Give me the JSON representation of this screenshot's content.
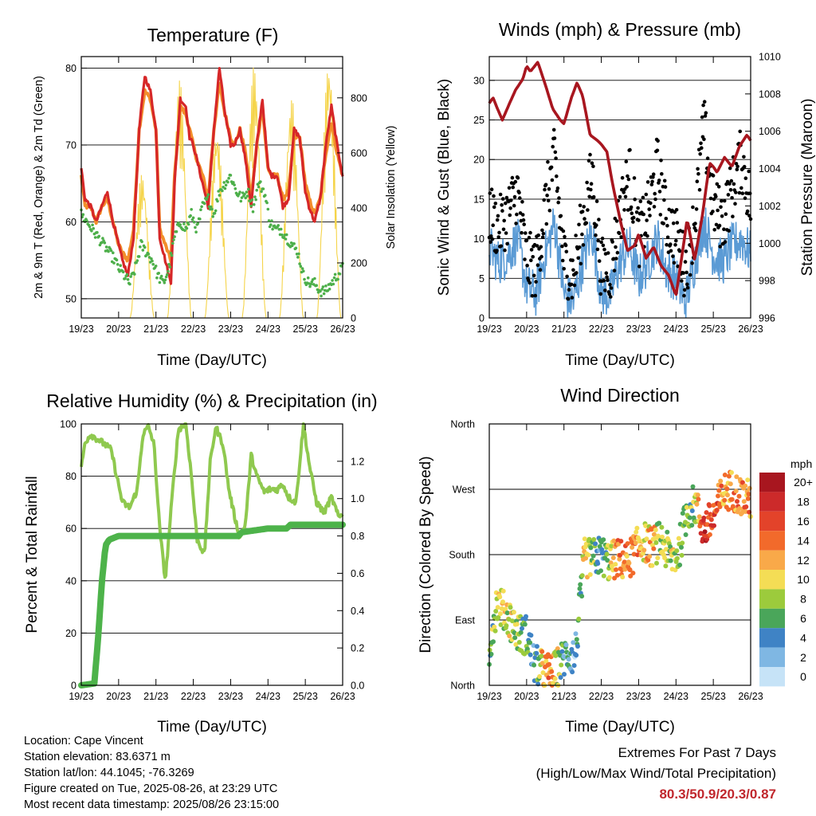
{
  "chart_data": [
    {
      "type": "line",
      "title": "Temperature (F)",
      "xlabel": "Time (Day/UTC)",
      "ylabel": "2m & 9m T (Red, Orange) & 2m Td (Green)",
      "y2label": "Solar Insolation (Yellow)",
      "x_ticks": [
        "19/23",
        "20/23",
        "21/23",
        "22/23",
        "23/23",
        "24/23",
        "25/23",
        "26/23"
      ],
      "ylim": [
        47.5,
        81.5
      ],
      "y_ticks": [
        50,
        60,
        70,
        80
      ],
      "y2lim": [
        0,
        950
      ],
      "y2_ticks": [
        0,
        200,
        400,
        600,
        800
      ],
      "series": [
        {
          "color": "#d62728",
          "x": [
            0,
            0.1,
            0.25,
            0.4,
            0.55,
            0.7,
            0.85,
            1.0,
            1.1,
            1.25,
            1.4,
            1.55,
            1.7,
            1.85,
            2.0,
            2.1,
            2.25,
            2.4,
            2.5,
            2.65,
            2.8,
            2.9,
            3.0,
            3.1,
            3.25,
            3.4,
            3.55,
            3.7,
            3.85,
            4.0,
            4.1,
            4.25,
            4.4,
            4.55,
            4.7,
            4.85,
            5.0,
            5.1,
            5.25,
            5.4,
            5.55,
            5.7,
            5.85,
            6.0,
            6.1,
            6.25,
            6.4,
            6.55,
            6.7,
            6.85,
            7.0
          ],
          "values": [
            67,
            63,
            62,
            60,
            62,
            64,
            60,
            57,
            55,
            53,
            58,
            72,
            79,
            77,
            72,
            58,
            55,
            52,
            65,
            76,
            75,
            71,
            70,
            68,
            65,
            62,
            72,
            80,
            74,
            70,
            70,
            72,
            68,
            62,
            70,
            76,
            67,
            66,
            66,
            62,
            63,
            72,
            71,
            64,
            62,
            60,
            63,
            70,
            75,
            70,
            66
          ]
        },
        {
          "color": "#f28e2b",
          "x": [
            0,
            0.1,
            0.25,
            0.4,
            0.55,
            0.7,
            0.85,
            1.0,
            1.1,
            1.25,
            1.4,
            1.55,
            1.7,
            1.85,
            2.0,
            2.1,
            2.25,
            2.4,
            2.5,
            2.65,
            2.8,
            2.9,
            3.0,
            3.1,
            3.25,
            3.4,
            3.55,
            3.7,
            3.85,
            4.0,
            4.1,
            4.25,
            4.4,
            4.55,
            4.7,
            4.85,
            5.0,
            5.1,
            5.25,
            5.4,
            5.55,
            5.7,
            5.85,
            6.0,
            6.1,
            6.25,
            6.4,
            6.55,
            6.7,
            6.85,
            7.0
          ],
          "values": [
            66,
            62,
            62,
            60,
            62,
            63,
            60,
            57,
            56,
            55,
            59,
            72,
            77,
            76,
            72,
            59,
            57,
            55,
            66,
            75,
            74,
            72,
            70,
            68,
            66,
            63,
            72,
            78,
            74,
            71,
            70,
            72,
            69,
            63,
            70,
            75,
            67,
            66,
            66,
            63,
            64,
            71,
            71,
            65,
            63,
            61,
            63,
            69,
            73,
            69,
            66
          ]
        },
        {
          "color": "#4daf4a",
          "x": [
            0,
            0.15,
            0.3,
            0.45,
            0.6,
            0.75,
            0.9,
            1.0,
            1.15,
            1.3,
            1.45,
            1.6,
            1.75,
            1.9,
            2.05,
            2.2,
            2.35,
            2.5,
            2.65,
            2.8,
            2.95,
            3.1,
            3.25,
            3.4,
            3.55,
            3.7,
            3.85,
            4.0,
            4.15,
            4.3,
            4.45,
            4.6,
            4.75,
            4.9,
            5.05,
            5.2,
            5.35,
            5.5,
            5.65,
            5.8,
            5.95,
            6.1,
            6.25,
            6.4,
            6.55,
            6.7,
            6.85,
            7.0
          ],
          "values": [
            61,
            60,
            59,
            58,
            57,
            56,
            55,
            54,
            53,
            52,
            54,
            57,
            56,
            55,
            53,
            52,
            54,
            58,
            60,
            59,
            61,
            59,
            62,
            63,
            61,
            64,
            65,
            66,
            64,
            63,
            64,
            62,
            65,
            64,
            60,
            59,
            59,
            58,
            57,
            56,
            53,
            52,
            52,
            51,
            51,
            52,
            53,
            54
          ]
        }
      ],
      "insolation": {
        "color": "#f5d44a",
        "peaks": [
          {
            "x": 1.63,
            "y": 530
          },
          {
            "x": 2.63,
            "y": 870
          },
          {
            "x": 3.63,
            "y": 700
          },
          {
            "x": 4.63,
            "y": 920
          },
          {
            "x": 5.63,
            "y": 810
          },
          {
            "x": 6.63,
            "y": 950
          }
        ]
      }
    },
    {
      "type": "scatter",
      "title": "Winds (mph) & Pressure (mb)",
      "xlabel": "Time (Day/UTC)",
      "ylabel": "Sonic Wind & Gust (Blue, Black)",
      "y2label": "Station Pressure (Maroon)",
      "x_ticks": [
        "19/23",
        "20/23",
        "21/23",
        "22/23",
        "23/23",
        "24/23",
        "25/23",
        "26/23"
      ],
      "ylim": [
        0,
        33
      ],
      "y_ticks": [
        0,
        5,
        10,
        15,
        20,
        25,
        30
      ],
      "y2lim": [
        996,
        1010
      ],
      "y2_ticks": [
        996,
        998,
        1000,
        1002,
        1004,
        1006,
        1008,
        1010
      ],
      "pressure": {
        "color": "#a8161f",
        "x": [
          0,
          0.1,
          0.2,
          0.35,
          0.5,
          0.7,
          0.9,
          1.0,
          1.1,
          1.3,
          1.5,
          1.7,
          1.9,
          2.0,
          2.2,
          2.35,
          2.5,
          2.7,
          2.9,
          3.0,
          3.15,
          3.3,
          3.5,
          3.7,
          3.9,
          4.0,
          4.2,
          4.4,
          4.6,
          4.8,
          5.0,
          5.15,
          5.3,
          5.5,
          5.7,
          5.9,
          6.0,
          6.1,
          6.3,
          6.5,
          6.7,
          6.9,
          7.0
        ],
        "values": [
          1007.5,
          1007.8,
          1007.3,
          1006.6,
          1007.3,
          1008.2,
          1008.8,
          1009.5,
          1009.2,
          1009.7,
          1008.5,
          1007.2,
          1006.6,
          1006.4,
          1007.8,
          1008.6,
          1007.9,
          1005.8,
          1005.5,
          1005.3,
          1004.9,
          1003.2,
          1001.3,
          999.6,
          999.9,
          1000.5,
          999.2,
          999.8,
          998.8,
          998.3,
          997.2,
          999.2,
          1001.3,
          999.1,
          1001.4,
          1004.3,
          1004.1,
          1003.8,
          1004.6,
          1004.1,
          1005.2,
          1005.8,
          1005.5
        ]
      },
      "wind_pattern": {
        "x": [
          0,
          0.25,
          0.5,
          0.75,
          1.0,
          1.25,
          1.5,
          1.75,
          2.0,
          2.25,
          2.5,
          2.75,
          3.0,
          3.25,
          3.5,
          3.75,
          4.0,
          4.25,
          4.5,
          4.75,
          5.0,
          5.25,
          5.5,
          5.75,
          6.0,
          6.25,
          6.5,
          6.75,
          7.0
        ],
        "sustained": [
          9,
          7,
          8,
          10,
          4,
          3,
          8,
          12,
          3,
          2,
          7,
          11,
          3,
          3,
          7,
          9,
          5,
          7,
          10,
          6,
          5,
          2,
          7,
          12,
          8,
          7,
          9,
          10,
          8
        ],
        "gust": [
          12,
          10,
          12,
          15,
          6,
          5,
          13,
          19,
          6,
          4,
          11,
          17,
          5,
          5,
          12,
          17,
          9,
          12,
          18,
          11,
          9,
          5,
          11,
          23,
          13,
          11,
          15,
          19,
          13
        ]
      }
    },
    {
      "type": "line",
      "title": "Relative Humidity (%) & Precipitation (in)",
      "xlabel": "Time (Day/UTC)",
      "ylabel": "Percent & Total Rainfall",
      "x_ticks": [
        "19/23",
        "20/23",
        "21/23",
        "22/23",
        "23/23",
        "24/23",
        "25/23",
        "26/23"
      ],
      "ylim": [
        0,
        100
      ],
      "y_ticks": [
        0,
        20,
        40,
        60,
        80,
        100
      ],
      "y2lim": [
        0,
        1.4
      ],
      "y2_ticks": [
        0.0,
        0.2,
        0.4,
        0.6,
        0.8,
        1.0,
        1.2
      ],
      "series": [
        {
          "name": "RH",
          "color": "#8fc94f",
          "x": [
            0,
            0.1,
            0.25,
            0.45,
            0.65,
            0.8,
            0.95,
            1.1,
            1.3,
            1.5,
            1.65,
            1.8,
            1.95,
            2.1,
            2.25,
            2.45,
            2.6,
            2.8,
            2.95,
            3.1,
            3.3,
            3.45,
            3.6,
            3.8,
            3.95,
            4.1,
            4.25,
            4.4,
            4.55,
            4.7,
            4.9,
            5.05,
            5.25,
            5.4,
            5.55,
            5.75,
            5.95,
            6.1,
            6.3,
            6.5,
            6.7,
            6.9,
            7.0
          ],
          "values": [
            83,
            93,
            96,
            94,
            92,
            90,
            80,
            70,
            68,
            75,
            96,
            99,
            92,
            60,
            40,
            75,
            98,
            100,
            80,
            56,
            50,
            85,
            99,
            92,
            75,
            65,
            56,
            62,
            88,
            80,
            74,
            75,
            75,
            77,
            72,
            70,
            100,
            85,
            70,
            66,
            72,
            64,
            66
          ]
        },
        {
          "name": "Precip",
          "color": "#4db34a",
          "x": [
            0,
            0.35,
            0.45,
            0.55,
            0.65,
            0.75,
            1.0,
            2.0,
            3.0,
            4.0,
            4.2,
            4.3,
            5.0,
            5.5,
            5.6,
            6.0,
            7.0
          ],
          "values": [
            0.0,
            0.01,
            0.25,
            0.55,
            0.75,
            0.78,
            0.8,
            0.8,
            0.8,
            0.8,
            0.8,
            0.82,
            0.84,
            0.84,
            0.86,
            0.86,
            0.86
          ]
        }
      ]
    },
    {
      "type": "scatter",
      "title": "Wind Direction",
      "xlabel": "Time (Day/UTC)",
      "ylabel": "Direction (Colored By Speed)",
      "x_ticks": [
        "19/23",
        "20/23",
        "21/23",
        "22/23",
        "23/23",
        "24/23",
        "25/23",
        "26/23"
      ],
      "y_ticks": [
        "North",
        "East",
        "South",
        "West",
        "North"
      ],
      "ylim": [
        0,
        360
      ],
      "legend_title": "mph",
      "legend_labels": [
        "20+",
        "18",
        "16",
        "14",
        "12",
        "10",
        "8",
        "6",
        "4",
        "2",
        "0"
      ],
      "legend_colors": [
        "#a8161f",
        "#cc2a2a",
        "#e3432a",
        "#f26a2b",
        "#f9a949",
        "#f4dd55",
        "#9ccb3c",
        "#4aa65a",
        "#3f83c5",
        "#7fb7e3",
        "#c6e3f7"
      ],
      "direction_pattern": {
        "x": [
          0,
          0.2,
          0.5,
          0.8,
          1.0,
          1.2,
          1.45,
          1.7,
          1.9,
          2.1,
          2.3,
          2.55,
          2.8,
          3.0,
          3.2,
          3.45,
          3.7,
          3.9,
          4.1,
          4.35,
          4.6,
          4.85,
          5.05,
          5.3,
          5.5,
          5.75,
          6.0,
          6.25,
          6.5,
          6.75,
          7.0
        ],
        "deg": [
          50,
          115,
          95,
          70,
          70,
          30,
          20,
          15,
          30,
          45,
          40,
          175,
          175,
          180,
          170,
          175,
          170,
          185,
          200,
          190,
          200,
          175,
          180,
          240,
          250,
          215,
          230,
          265,
          270,
          260,
          255
        ],
        "speed": [
          6,
          8,
          10,
          7,
          5,
          4,
          12,
          13,
          6,
          3,
          2,
          11,
          8,
          4,
          8,
          14,
          12,
          14,
          10,
          12,
          7,
          9,
          8,
          8,
          6,
          18,
          16,
          12,
          12,
          14,
          12
        ]
      }
    }
  ],
  "info": {
    "location": "Location: Cape Vincent",
    "elevation": "Station elevation: 83.6371 m",
    "latlon": "Station lat/lon: 44.1045; -76.3269",
    "created": "Figure created on Tue, 2025-08-26, at 23:29 UTC",
    "timestamp": "Most recent data timestamp: 2025/08/26 23:15:00"
  },
  "extremes": {
    "title": "Extremes For Past 7 Days",
    "subtitle": "(High/Low/Max Wind/Total Precipitation)",
    "values": "80.3/50.9/20.3/0.87"
  }
}
